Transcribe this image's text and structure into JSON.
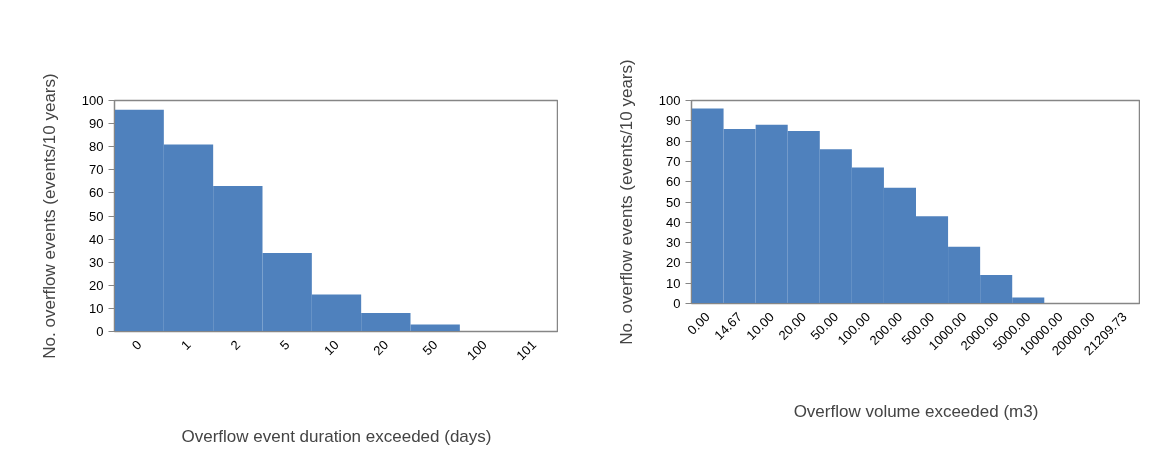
{
  "chart_data": [
    {
      "type": "bar",
      "xlabel": "Overflow event duration exceeded (days)",
      "ylabel": "No. overflow events (events/10 years)",
      "categories": [
        "0",
        "1",
        "2",
        "5",
        "10",
        "20",
        "50",
        "100",
        "101"
      ],
      "values": [
        96,
        81,
        63,
        34,
        16,
        8,
        3,
        0,
        0
      ],
      "color": "#4f81bd",
      "ylim": [
        0,
        100
      ],
      "yticks": [
        0,
        10,
        20,
        30,
        40,
        50,
        60,
        70,
        80,
        90,
        100
      ]
    },
    {
      "type": "bar",
      "xlabel": "Overflow volume exceeded (m3)",
      "ylabel": "No. overflow events (events/10 years)",
      "categories": [
        "0.00",
        "14.67",
        "10.00",
        "20.00",
        "50.00",
        "100.00",
        "200.00",
        "500.00",
        "1000.00",
        "2000.00",
        "5000.00",
        "10000.00",
        "20000.00",
        "21209.73"
      ],
      "values": [
        96,
        86,
        88,
        85,
        76,
        67,
        57,
        43,
        28,
        14,
        3,
        0,
        0,
        0
      ],
      "color": "#4f81bd",
      "ylim": [
        0,
        100
      ],
      "yticks": [
        0,
        10,
        20,
        30,
        40,
        50,
        60,
        70,
        80,
        90,
        100
      ]
    }
  ]
}
